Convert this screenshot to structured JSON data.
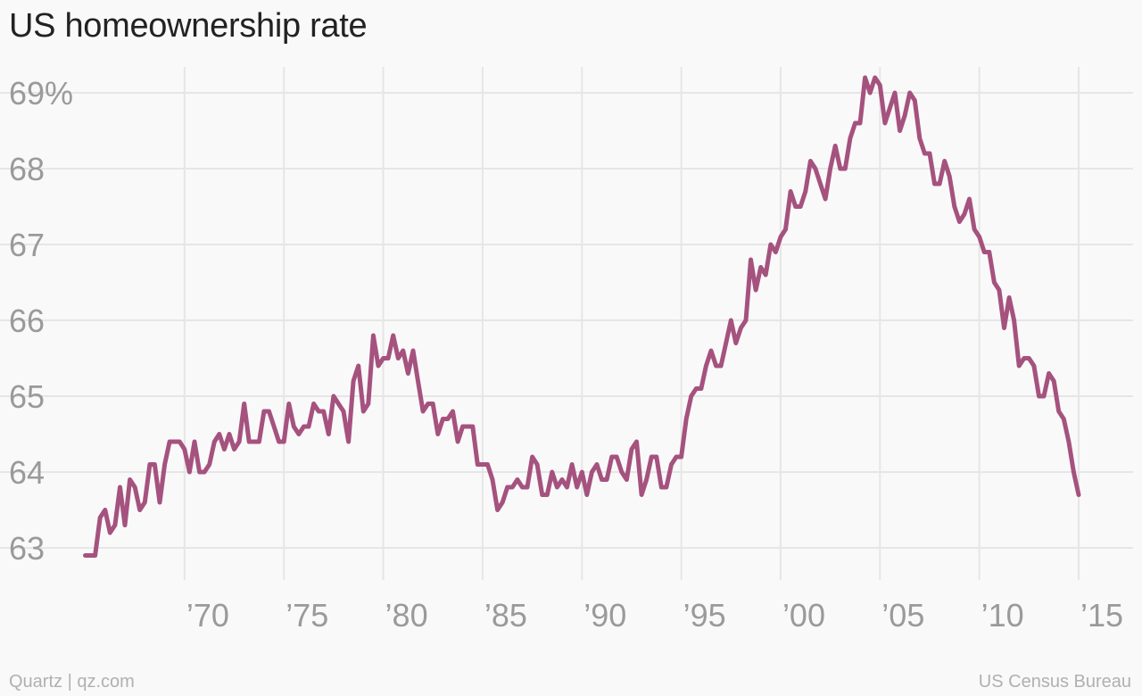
{
  "title": "US homeownership rate",
  "footer": {
    "credit": "Quartz | qz.com",
    "source": "US Census Bureau"
  },
  "chart_data": {
    "type": "line",
    "title": "US homeownership rate",
    "xlabel": "",
    "ylabel": "",
    "ylim": [
      63,
      69
    ],
    "xlim": [
      1965,
      2015
    ],
    "yticks": [
      63,
      64,
      65,
      66,
      67,
      68,
      69
    ],
    "ytick_labels": [
      "63",
      "64",
      "65",
      "66",
      "67",
      "68",
      "69%"
    ],
    "xticks": [
      1970,
      1975,
      1980,
      1985,
      1990,
      1995,
      2000,
      2005,
      2010,
      2015
    ],
    "xtick_labels": [
      "’70",
      "’75",
      "’80",
      "’85",
      "’90",
      "’95",
      "’00",
      "’05",
      "’10",
      "’15"
    ],
    "grid": true,
    "line_color": "#a5527f",
    "series": [
      {
        "x": [
          1965.0,
          1965.25,
          1965.5,
          1965.75,
          1966.0,
          1966.25,
          1966.5,
          1966.75,
          1967.0,
          1967.25,
          1967.5,
          1967.75,
          1968.0,
          1968.25,
          1968.5,
          1968.75,
          1969.0,
          1969.25,
          1969.5,
          1969.75,
          1970.0,
          1970.25,
          1970.5,
          1970.75,
          1971.0,
          1971.25,
          1971.5,
          1971.75,
          1972.0,
          1972.25,
          1972.5,
          1972.75,
          1973.0,
          1973.25,
          1973.5,
          1973.75,
          1974.0,
          1974.25,
          1974.5,
          1974.75,
          1975.0,
          1975.25,
          1975.5,
          1975.75,
          1976.0,
          1976.25,
          1976.5,
          1976.75,
          1977.0,
          1977.25,
          1977.5,
          1977.75,
          1978.0,
          1978.25,
          1978.5,
          1978.75,
          1979.0,
          1979.25,
          1979.5,
          1979.75,
          1980.0,
          1980.25,
          1980.5,
          1980.75,
          1981.0,
          1981.25,
          1981.5,
          1981.75,
          1982.0,
          1982.25,
          1982.5,
          1982.75,
          1983.0,
          1983.25,
          1983.5,
          1983.75,
          1984.0,
          1984.25,
          1984.5,
          1984.75,
          1985.0,
          1985.25,
          1985.5,
          1985.75,
          1986.0,
          1986.25,
          1986.5,
          1986.75,
          1987.0,
          1987.25,
          1987.5,
          1987.75,
          1988.0,
          1988.25,
          1988.5,
          1988.75,
          1989.0,
          1989.25,
          1989.5,
          1989.75,
          1990.0,
          1990.25,
          1990.5,
          1990.75,
          1991.0,
          1991.25,
          1991.5,
          1991.75,
          1992.0,
          1992.25,
          1992.5,
          1992.75,
          1993.0,
          1993.25,
          1993.5,
          1993.75,
          1994.0,
          1994.25,
          1994.5,
          1994.75,
          1995.0,
          1995.25,
          1995.5,
          1995.75,
          1996.0,
          1996.25,
          1996.5,
          1996.75,
          1997.0,
          1997.25,
          1997.5,
          1997.75,
          1998.0,
          1998.25,
          1998.5,
          1998.75,
          1999.0,
          1999.25,
          1999.5,
          1999.75,
          2000.0,
          2000.25,
          2000.5,
          2000.75,
          2001.0,
          2001.25,
          2001.5,
          2001.75,
          2002.0,
          2002.25,
          2002.5,
          2002.75,
          2003.0,
          2003.25,
          2003.5,
          2003.75,
          2004.0,
          2004.25,
          2004.5,
          2004.75,
          2005.0,
          2005.25,
          2005.5,
          2005.75,
          2006.0,
          2006.25,
          2006.5,
          2006.75,
          2007.0,
          2007.25,
          2007.5,
          2007.75,
          2008.0,
          2008.25,
          2008.5,
          2008.75,
          2009.0,
          2009.25,
          2009.5,
          2009.75,
          2010.0,
          2010.25,
          2010.5,
          2010.75,
          2011.0,
          2011.25,
          2011.5,
          2011.75,
          2012.0,
          2012.25,
          2012.5,
          2012.75,
          2013.0,
          2013.25,
          2013.5,
          2013.75,
          2014.0,
          2014.25,
          2014.5,
          2014.75,
          2015.0
        ],
        "values": [
          62.9,
          62.9,
          62.9,
          63.4,
          63.5,
          63.2,
          63.3,
          63.8,
          63.3,
          63.9,
          63.8,
          63.5,
          63.6,
          64.1,
          64.1,
          63.6,
          64.1,
          64.4,
          64.4,
          64.4,
          64.3,
          64.0,
          64.4,
          64.0,
          64.0,
          64.1,
          64.4,
          64.5,
          64.3,
          64.5,
          64.3,
          64.4,
          64.9,
          64.4,
          64.4,
          64.4,
          64.8,
          64.8,
          64.6,
          64.4,
          64.4,
          64.9,
          64.6,
          64.5,
          64.6,
          64.6,
          64.9,
          64.8,
          64.8,
          64.5,
          65.0,
          64.9,
          64.8,
          64.4,
          65.2,
          65.4,
          64.8,
          64.9,
          65.8,
          65.4,
          65.5,
          65.5,
          65.8,
          65.5,
          65.6,
          65.3,
          65.6,
          65.2,
          64.8,
          64.9,
          64.9,
          64.5,
          64.7,
          64.7,
          64.8,
          64.4,
          64.6,
          64.6,
          64.6,
          64.1,
          64.1,
          64.1,
          63.9,
          63.5,
          63.6,
          63.8,
          63.8,
          63.9,
          63.8,
          63.8,
          64.2,
          64.1,
          63.7,
          63.7,
          64.0,
          63.8,
          63.9,
          63.8,
          64.1,
          63.8,
          64.0,
          63.7,
          64.0,
          64.1,
          63.9,
          63.9,
          64.2,
          64.2,
          64.0,
          63.9,
          64.3,
          64.4,
          63.7,
          63.9,
          64.2,
          64.2,
          63.8,
          63.8,
          64.1,
          64.2,
          64.2,
          64.7,
          65.0,
          65.1,
          65.1,
          65.4,
          65.6,
          65.4,
          65.4,
          65.7,
          66.0,
          65.7,
          65.9,
          66.0,
          66.8,
          66.4,
          66.7,
          66.6,
          67.0,
          66.9,
          67.1,
          67.2,
          67.7,
          67.5,
          67.5,
          67.7,
          68.1,
          68.0,
          67.8,
          67.6,
          68.0,
          68.3,
          68.0,
          68.0,
          68.4,
          68.6,
          68.6,
          69.2,
          69.0,
          69.2,
          69.1,
          68.6,
          68.8,
          69.0,
          68.5,
          68.7,
          69.0,
          68.9,
          68.4,
          68.2,
          68.2,
          67.8,
          67.8,
          68.1,
          67.9,
          67.5,
          67.3,
          67.4,
          67.6,
          67.2,
          67.1,
          66.9,
          66.9,
          66.5,
          66.4,
          65.9,
          66.3,
          66.0,
          65.4,
          65.5,
          65.5,
          65.4,
          65.0,
          65.0,
          65.3,
          65.2,
          64.8,
          64.7,
          64.4,
          64.0,
          63.7
        ]
      }
    ]
  }
}
